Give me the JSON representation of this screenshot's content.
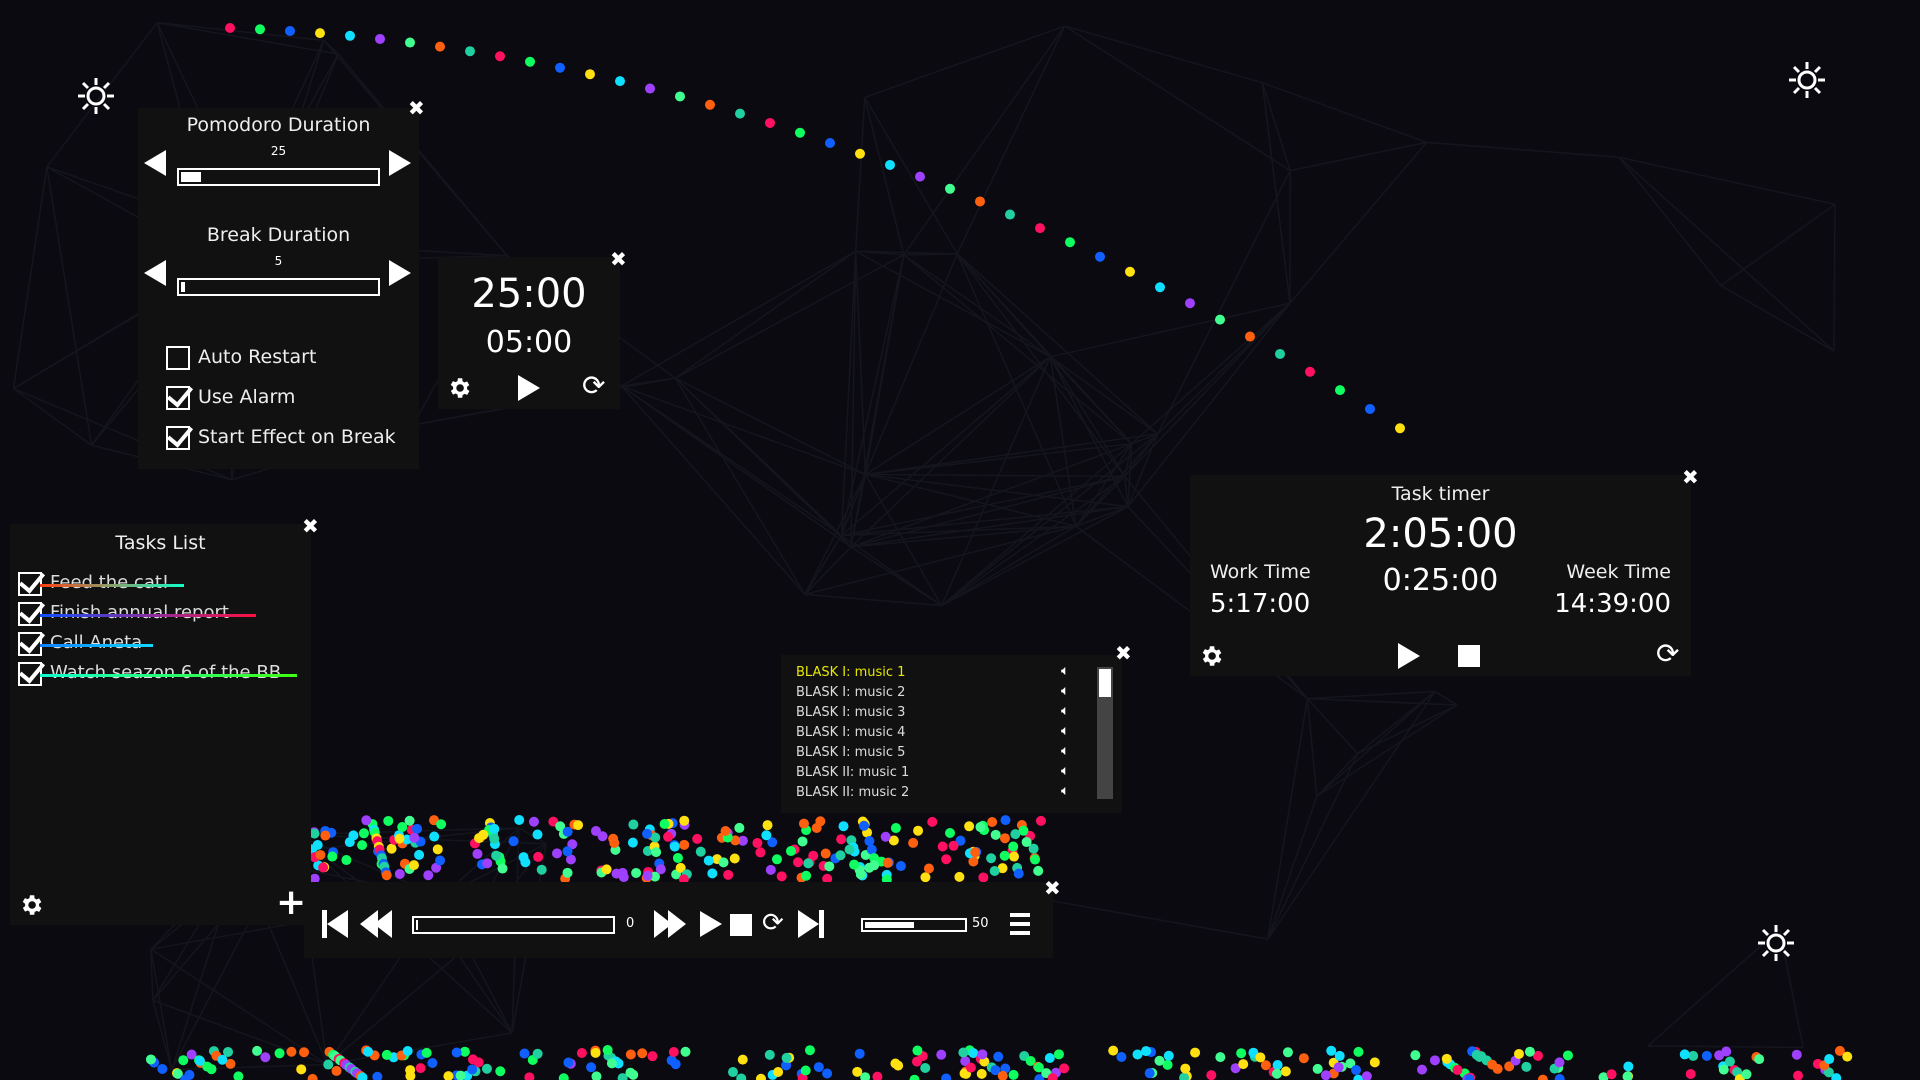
{
  "settings_panel": {
    "pomodoro_label": "Pomodoro Duration",
    "pomodoro_value": "25",
    "pomodoro_fraction": 0.1,
    "break_label": "Break Duration",
    "break_value": "5",
    "break_fraction": 0.02,
    "checkboxes": [
      {
        "label": "Auto Restart",
        "checked": false
      },
      {
        "label": "Use Alarm",
        "checked": true
      },
      {
        "label": "Start Effect on Break",
        "checked": true
      }
    ]
  },
  "timer": {
    "work": "25:00",
    "break": "05:00"
  },
  "tasks": {
    "title": "Tasks List",
    "items": [
      {
        "label": "Feed the cat!",
        "done": true,
        "strike": [
          "#ff4010",
          "#10ffc8"
        ]
      },
      {
        "label": "Finish annual report",
        "done": true,
        "strike": [
          "#1050ff",
          "#ff1040"
        ]
      },
      {
        "label": "Call Aneta",
        "done": true,
        "strike": [
          "#1080ff",
          "#10d8ff"
        ]
      },
      {
        "label": "Watch seazon 6 of the BB",
        "done": true,
        "strike": [
          "#10ffd0",
          "#40ff10"
        ]
      }
    ]
  },
  "playlist": {
    "active_color": "#e8e800",
    "songs": [
      "BLASK I: music 1",
      "BLASK I: music 2",
      "BLASK I: music 3",
      "BLASK I: music 4",
      "BLASK I: music 5",
      "BLASK II: music 1",
      "BLASK II: music 2"
    ],
    "active_index": 0
  },
  "player": {
    "position": "0",
    "progress": 0,
    "volume": "50",
    "volume_fraction": 0.5
  },
  "task_timer": {
    "title": "Task timer",
    "total": "2:05:00",
    "current": "0:25:00",
    "work_label": "Work Time",
    "work_value": "5:17:00",
    "week_label": "Week Time",
    "week_value": "14:39:00"
  },
  "icons": {
    "close": "✖",
    "settings": "gear-icon",
    "brightness": "sun-icon"
  }
}
